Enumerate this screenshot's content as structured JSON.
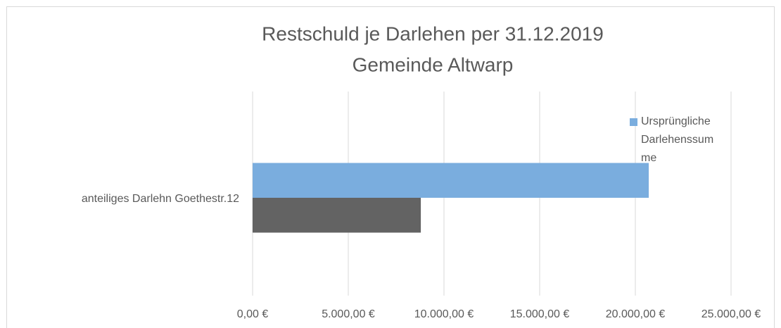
{
  "chart_data": {
    "type": "barh",
    "title": "Restschuld je Darlehen per 31.12.2019",
    "subtitle": "Gemeinde Altwarp",
    "categories": [
      "anteiliges Darlehn Goethestr.12"
    ],
    "series": [
      {
        "name": "Ursprüngliche Darlehenssumme",
        "color": "#7aadde",
        "values": [
          20700
        ]
      },
      {
        "color": "#636363",
        "values": [
          8790
        ]
      }
    ],
    "xlim": [
      0,
      25000
    ],
    "xticks": [
      {
        "value": 0,
        "label": "0,00 €"
      },
      {
        "value": 5000,
        "label": "5.000,00 €"
      },
      {
        "value": 10000,
        "label": "10.000,00 €"
      },
      {
        "value": 15000,
        "label": "15.000,00 €"
      },
      {
        "value": 20000,
        "label": "20.000,00 €"
      },
      {
        "value": 25000,
        "label": "25.000,00 €"
      }
    ],
    "grid": true,
    "legend": "right"
  }
}
